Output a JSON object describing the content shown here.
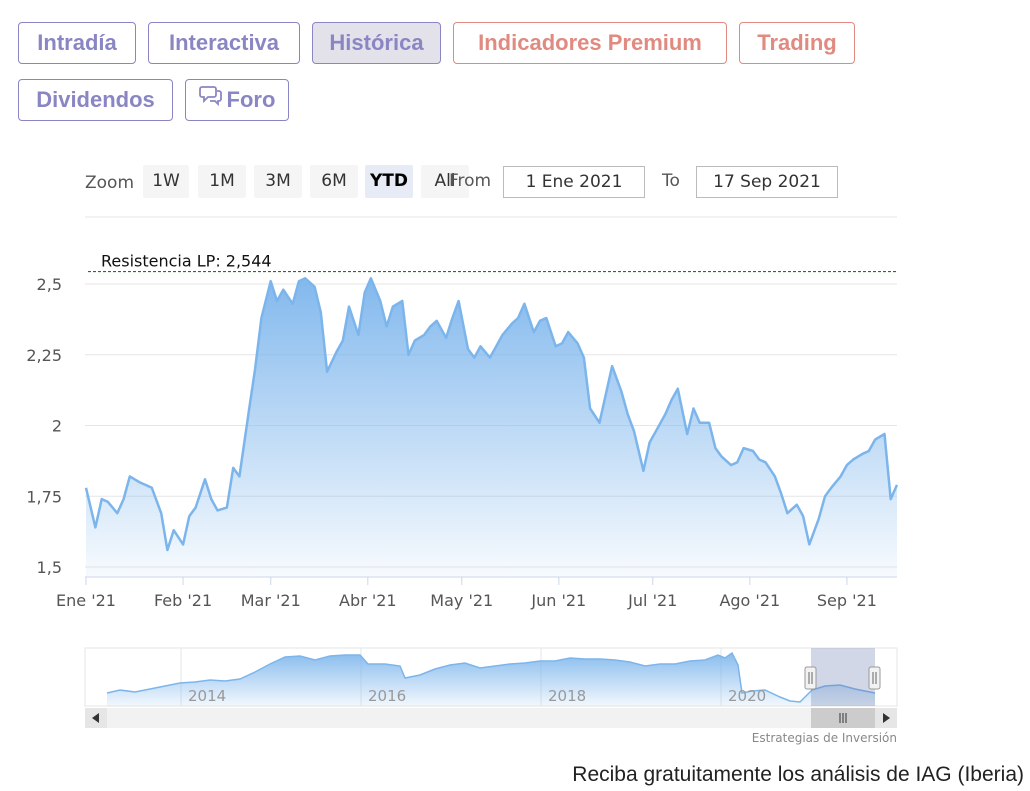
{
  "tabs": [
    {
      "label": "Intradía",
      "style": "normal"
    },
    {
      "label": "Interactiva",
      "style": "normal"
    },
    {
      "label": "Histórica",
      "style": "active"
    },
    {
      "label": "Indicadores Premium",
      "style": "premium"
    },
    {
      "label": "Trading",
      "style": "premium"
    },
    {
      "label": "Dividendos",
      "style": "normal"
    },
    {
      "label": "Foro",
      "style": "normal",
      "icon": "chat-bubbles-icon"
    }
  ],
  "range_selector": {
    "zoom_label": "Zoom",
    "buttons": [
      "1W",
      "1M",
      "3M",
      "6M",
      "YTD",
      "All"
    ],
    "active": "YTD",
    "from_label": "From",
    "from_value": "1 Ene 2021",
    "to_label": "To",
    "to_value": "17 Sep 2021"
  },
  "chart_data": {
    "type": "area",
    "x_ticks": [
      "Ene '21",
      "Feb '21",
      "Mar '21",
      "Abr '21",
      "May '21",
      "Jun '21",
      "Jul '21",
      "Ago '21",
      "Sep '21"
    ],
    "y_ticks": [
      "1,5",
      "1,75",
      "2",
      "2,25",
      "2,5"
    ],
    "ylim": [
      1.5,
      2.55
    ],
    "series": [
      {
        "x": [
          "2021-01-01",
          "2021-01-04",
          "2021-01-06",
          "2021-01-08",
          "2021-01-11",
          "2021-01-13",
          "2021-01-15",
          "2021-01-18",
          "2021-01-20",
          "2021-01-22",
          "2021-01-25",
          "2021-01-27",
          "2021-01-29",
          "2021-02-01",
          "2021-02-03",
          "2021-02-05",
          "2021-02-08",
          "2021-02-10",
          "2021-02-12",
          "2021-02-15",
          "2021-02-17",
          "2021-02-19",
          "2021-02-22",
          "2021-02-24",
          "2021-02-26",
          "2021-03-01",
          "2021-03-03",
          "2021-03-05",
          "2021-03-08",
          "2021-03-10",
          "2021-03-12",
          "2021-03-15",
          "2021-03-17",
          "2021-03-19",
          "2021-03-22",
          "2021-03-24",
          "2021-03-26",
          "2021-03-29",
          "2021-03-31",
          "2021-04-02",
          "2021-04-05",
          "2021-04-07",
          "2021-04-09",
          "2021-04-12",
          "2021-04-14",
          "2021-04-16",
          "2021-04-19",
          "2021-04-21",
          "2021-04-23",
          "2021-04-26",
          "2021-04-28",
          "2021-04-30",
          "2021-05-03",
          "2021-05-05",
          "2021-05-07",
          "2021-05-10",
          "2021-05-12",
          "2021-05-14",
          "2021-05-17",
          "2021-05-19",
          "2021-05-21",
          "2021-05-24",
          "2021-05-26",
          "2021-05-28",
          "2021-05-31",
          "2021-06-02",
          "2021-06-04",
          "2021-06-07",
          "2021-06-09",
          "2021-06-11",
          "2021-06-14",
          "2021-06-16",
          "2021-06-18",
          "2021-06-21",
          "2021-06-23",
          "2021-06-25",
          "2021-06-28",
          "2021-06-30",
          "2021-07-02",
          "2021-07-05",
          "2021-07-07",
          "2021-07-09",
          "2021-07-12",
          "2021-07-14",
          "2021-07-16",
          "2021-07-19",
          "2021-07-21",
          "2021-07-23",
          "2021-07-26",
          "2021-07-28",
          "2021-07-30",
          "2021-08-02",
          "2021-08-04",
          "2021-08-06",
          "2021-08-09",
          "2021-08-11",
          "2021-08-13",
          "2021-08-16",
          "2021-08-18",
          "2021-08-20",
          "2021-08-23",
          "2021-08-25",
          "2021-08-27",
          "2021-08-30",
          "2021-09-01",
          "2021-09-03",
          "2021-09-06",
          "2021-09-08",
          "2021-09-10",
          "2021-09-13",
          "2021-09-15",
          "2021-09-17"
        ],
        "y": [
          1.78,
          1.64,
          1.74,
          1.73,
          1.69,
          1.74,
          1.82,
          1.8,
          1.79,
          1.78,
          1.69,
          1.56,
          1.63,
          1.58,
          1.68,
          1.71,
          1.81,
          1.74,
          1.7,
          1.71,
          1.85,
          1.82,
          2.05,
          2.2,
          2.38,
          2.51,
          2.44,
          2.48,
          2.43,
          2.51,
          2.52,
          2.49,
          2.4,
          2.19,
          2.26,
          2.3,
          2.42,
          2.32,
          2.47,
          2.52,
          2.44,
          2.35,
          2.42,
          2.44,
          2.25,
          2.3,
          2.32,
          2.35,
          2.37,
          2.31,
          2.38,
          2.44,
          2.27,
          2.24,
          2.28,
          2.24,
          2.28,
          2.32,
          2.36,
          2.38,
          2.43,
          2.33,
          2.37,
          2.38,
          2.28,
          2.29,
          2.33,
          2.29,
          2.24,
          2.06,
          2.01,
          2.11,
          2.21,
          2.12,
          2.04,
          1.98,
          1.84,
          1.94,
          1.98,
          2.04,
          2.09,
          2.13,
          1.97,
          2.06,
          2.01,
          2.01,
          1.92,
          1.89,
          1.86,
          1.87,
          1.92,
          1.91,
          1.88,
          1.87,
          1.82,
          1.76,
          1.69,
          1.72,
          1.68,
          1.58,
          1.67,
          1.75,
          1.78,
          1.82,
          1.86,
          1.88,
          1.9,
          1.91,
          1.95,
          1.97,
          1.74,
          1.79
        ]
      }
    ],
    "annotations": [
      {
        "label": "Resistencia LP: 2,544",
        "value": 2.544,
        "style": "dashed",
        "color": "#1a7a1a"
      }
    ],
    "colors": {
      "line": "#7cb5ec",
      "fill_top": "#7cb5ec",
      "resistance": "#1a7a1a"
    },
    "navigator": {
      "labels": [
        "2014",
        "2016",
        "2018",
        "2020"
      ]
    },
    "grid": true
  },
  "credit": "Estrategias de Inversión",
  "cta": "Reciba gratuitamente los análisis de IAG (Iberia)"
}
